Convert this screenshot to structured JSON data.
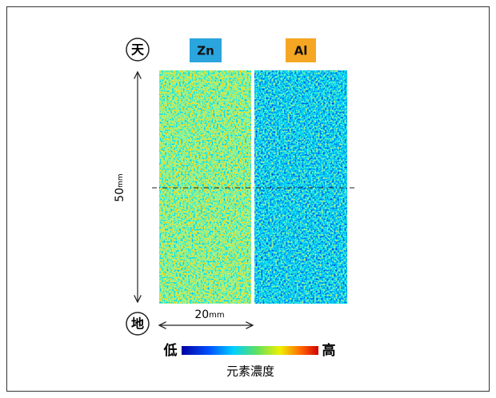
{
  "top_label": "天",
  "bottom_label": "地",
  "panels": [
    {
      "label": "Zn"
    },
    {
      "label": "Al"
    }
  ],
  "height_dimension": {
    "value": "50",
    "unit": "mm"
  },
  "width_dimension": {
    "value": "20",
    "unit": "mm"
  },
  "colorbar": {
    "low": "低",
    "high": "高",
    "title": "元素濃度"
  }
}
